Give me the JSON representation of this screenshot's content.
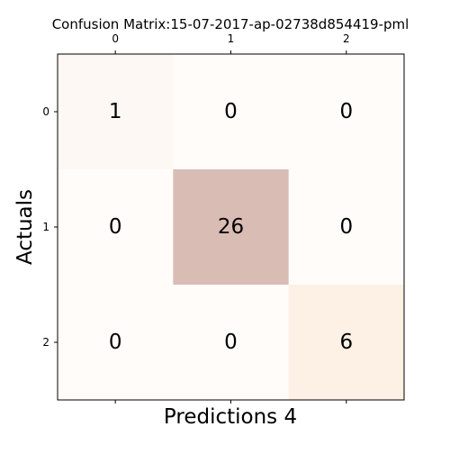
{
  "chart_data": {
    "type": "heatmap",
    "title": "Confusion Matrix:15-07-2017-ap-02738d854419-pml",
    "xlabel": "Predictions 4",
    "ylabel": "Actuals",
    "x_ticks": [
      "0",
      "1",
      "2"
    ],
    "y_ticks": [
      "0",
      "1",
      "2"
    ],
    "x_ticks_position": "top",
    "matrix": [
      [
        1,
        0,
        0
      ],
      [
        0,
        26,
        0
      ],
      [
        0,
        0,
        6
      ]
    ],
    "cell_colors": [
      [
        "#fdf8f3",
        "#fffcfa",
        "#fffcfa"
      ],
      [
        "#fffcfa",
        "#d9bdb4",
        "#fffcfa"
      ],
      [
        "#fffcfa",
        "#fffcfa",
        "#fdf0e4"
      ]
    ],
    "grid": false
  }
}
